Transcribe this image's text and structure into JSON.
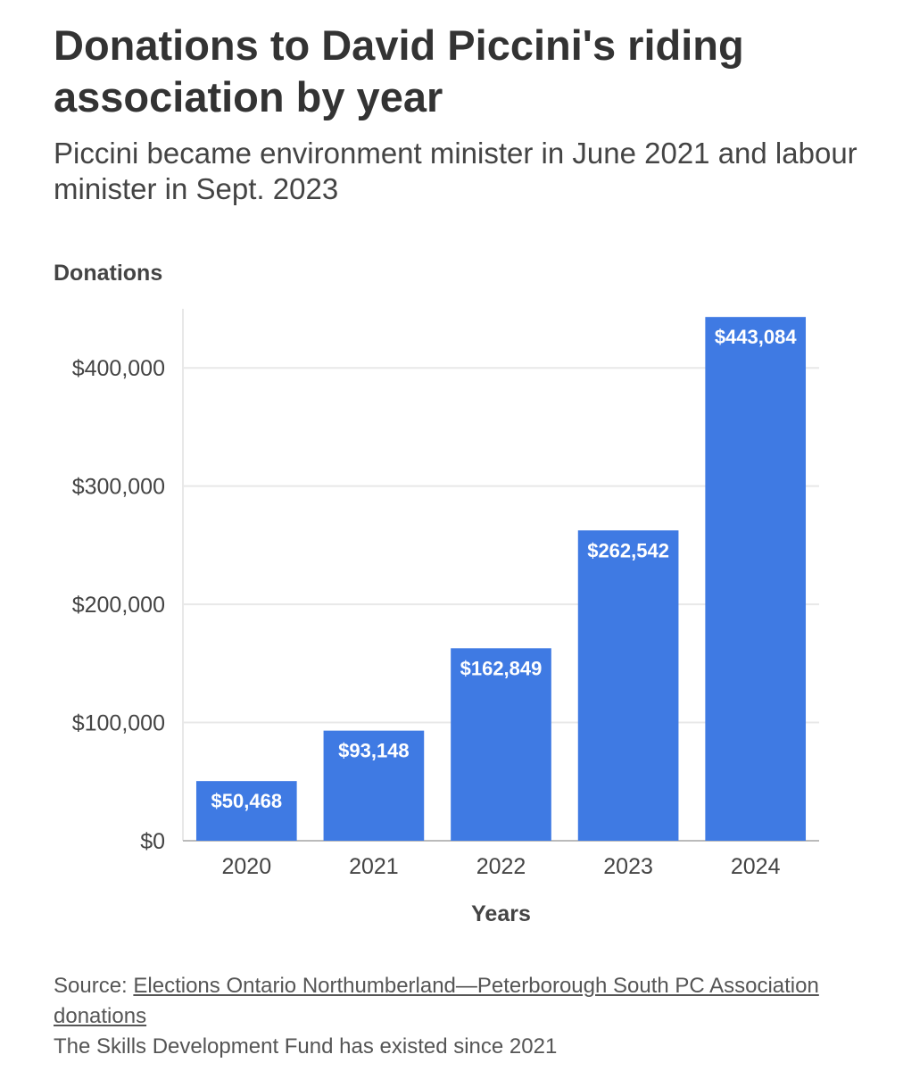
{
  "title": "Donations to David Piccini's riding association by year",
  "subtitle": "Piccini became environment minister in June 2021 and labour minister in Sept. 2023",
  "footer": {
    "source_prefix": "Source: ",
    "source_link": "Elections Ontario Northumberland—Peterborough South PC Association donations",
    "note": "The Skills Development Fund has existed since 2021"
  },
  "colors": {
    "bar": "#3f7ae3",
    "grid": "#e8e8e8",
    "axis": "#bbbbbb",
    "text": "#444444"
  },
  "chart_data": {
    "type": "bar",
    "title": "",
    "ylabel": "Donations",
    "xlabel": "Years",
    "categories": [
      "2020",
      "2021",
      "2022",
      "2023",
      "2024"
    ],
    "values": [
      50468,
      93148,
      162849,
      262542,
      443084
    ],
    "value_labels": [
      "$50,468",
      "$93,148",
      "$162,849",
      "$262,542",
      "$443,084"
    ],
    "y_ticks": [
      0,
      100000,
      200000,
      300000,
      400000
    ],
    "y_tick_labels": [
      "$0",
      "$100,000",
      "$200,000",
      "$300,000",
      "$400,000"
    ],
    "ylim": [
      0,
      450000
    ],
    "grid": true,
    "legend": "none"
  }
}
